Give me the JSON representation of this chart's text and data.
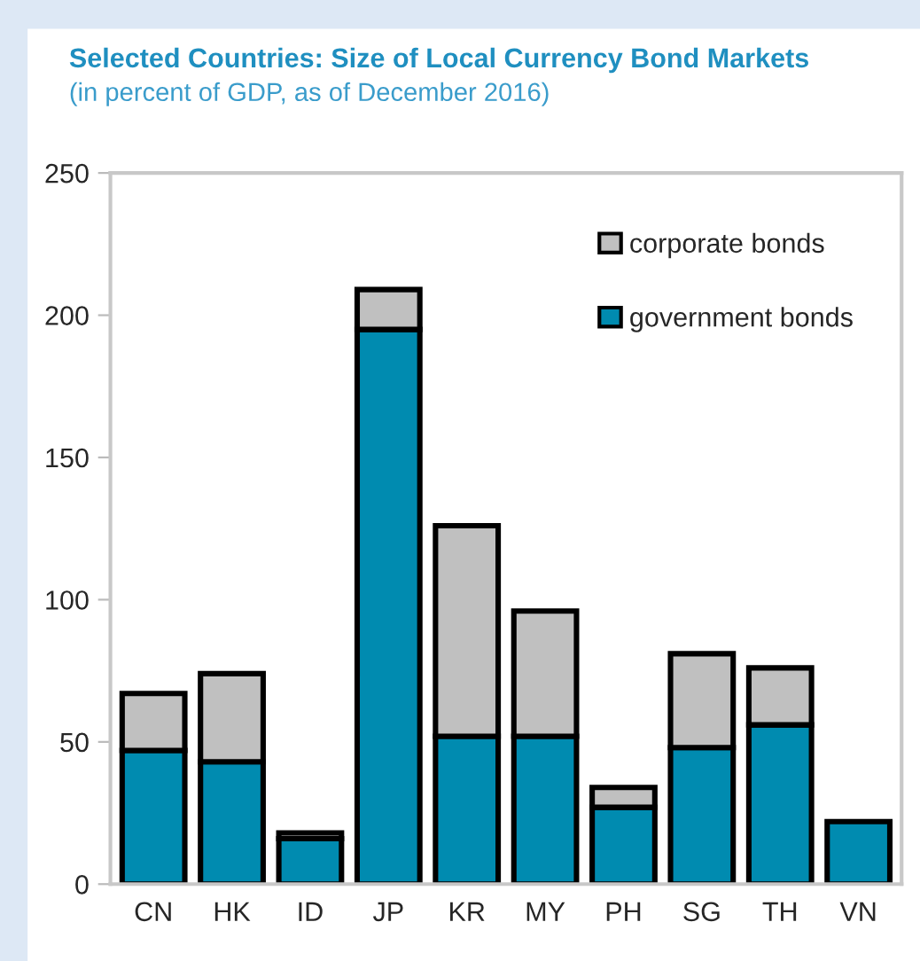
{
  "chart_data": {
    "type": "bar",
    "stacked": true,
    "title": "Selected Countries: Size of Local Currency Bond Markets",
    "subtitle": "(in percent of GDP, as of December 2016)",
    "categories": [
      "CN",
      "HK",
      "ID",
      "JP",
      "KR",
      "MY",
      "PH",
      "SG",
      "TH",
      "VN"
    ],
    "series": [
      {
        "name": "government bonds",
        "color": "#008bb0",
        "values": [
          47,
          43,
          16,
          195,
          52,
          52,
          27,
          48,
          56,
          22
        ]
      },
      {
        "name": "corporate bonds",
        "color": "#c0c0c0",
        "values": [
          20,
          31,
          2,
          14,
          74,
          44,
          7,
          33,
          20,
          null
        ]
      }
    ],
    "ylim": [
      0,
      250
    ],
    "yticks": [
      0,
      50,
      100,
      150,
      200,
      250
    ],
    "grid": false,
    "legend": "top right"
  }
}
